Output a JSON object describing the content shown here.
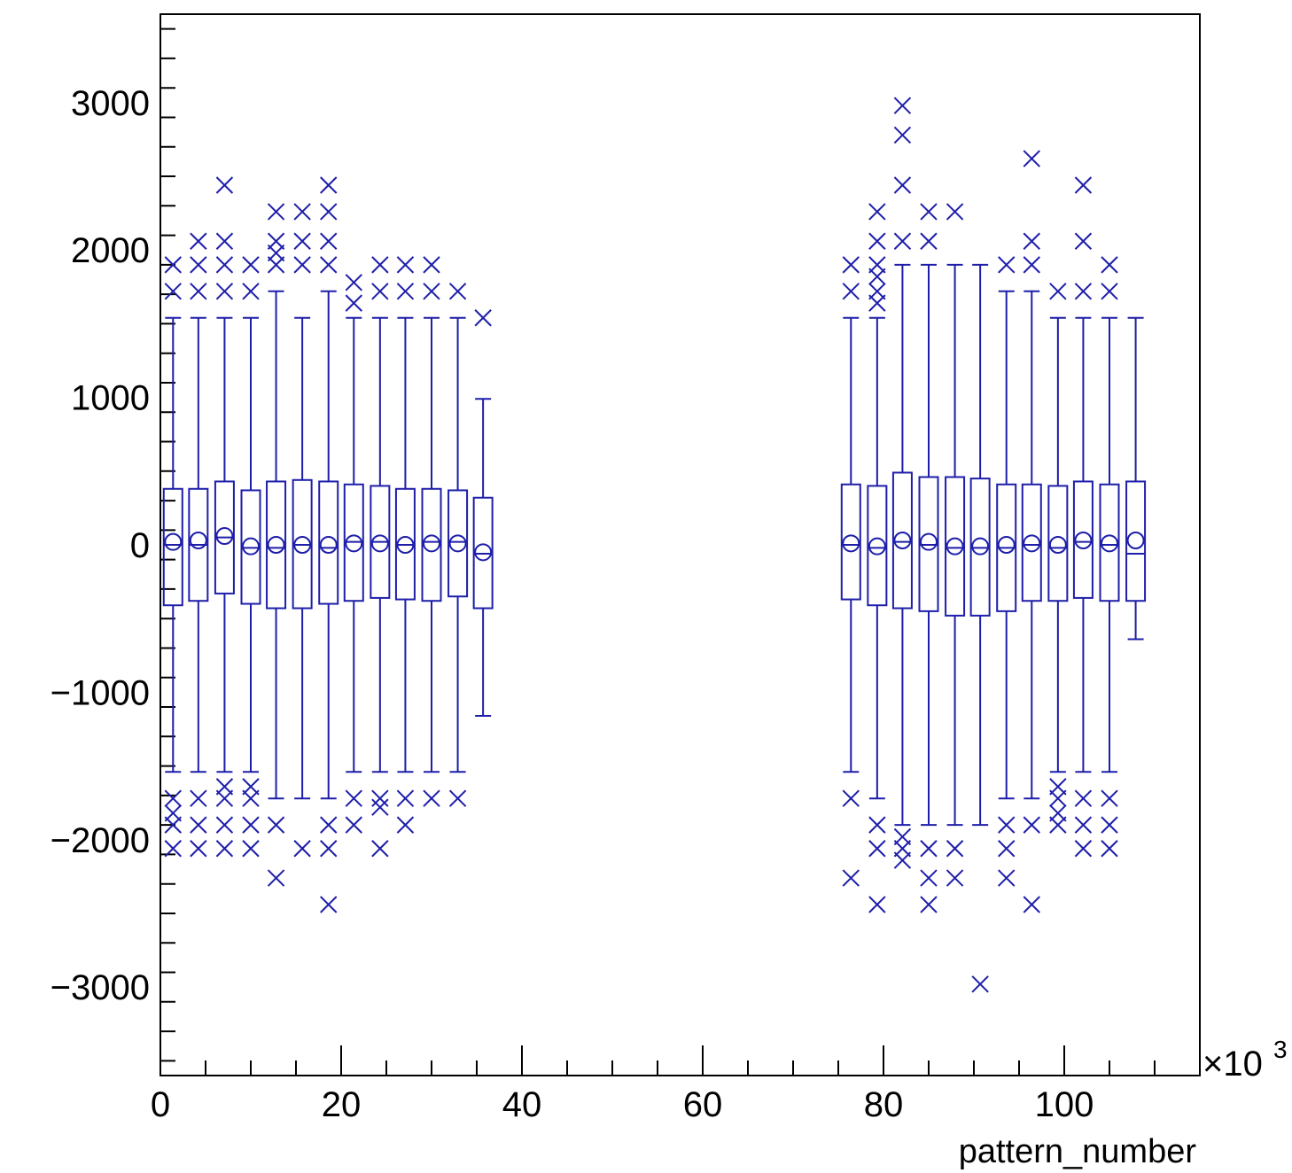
{
  "chart_data": {
    "type": "box",
    "xlabel": "pattern_number",
    "x_multiplier_label": "×10",
    "x_multiplier_exponent": "3",
    "xlim": [
      0,
      115
    ],
    "ylim": [
      -3600,
      3600
    ],
    "x_ticks": [
      0,
      20,
      40,
      60,
      80,
      100
    ],
    "x_tick_labels": [
      "0",
      "20",
      "40",
      "60",
      "80",
      "100"
    ],
    "y_ticks": [
      -3000,
      -2000,
      -1000,
      0,
      1000,
      2000,
      3000
    ],
    "y_tick_labels": [
      "−3000",
      "−2000",
      "−1000",
      "0",
      "1000",
      "2000",
      "3000"
    ],
    "color": "#1e1eaa",
    "boxes": [
      {
        "x": 1.4,
        "whisker_low": -1540,
        "q1": -410,
        "median": 0,
        "q3": 380,
        "whisker_high": 1540,
        "mean": 20,
        "outliers": [
          1720,
          1900,
          -1720,
          -1900,
          -2060,
          -1820
        ]
      },
      {
        "x": 4.2,
        "whisker_low": -1540,
        "q1": -380,
        "median": 0,
        "q3": 380,
        "whisker_high": 1540,
        "mean": 30,
        "outliers": [
          1720,
          1900,
          2060,
          -1720,
          -1900,
          -2060
        ]
      },
      {
        "x": 7.1,
        "whisker_low": -1540,
        "q1": -330,
        "median": 50,
        "q3": 430,
        "whisker_high": 1540,
        "mean": 60,
        "outliers": [
          1720,
          1900,
          2060,
          2440,
          -1640,
          -1720,
          -1900,
          -2060
        ]
      },
      {
        "x": 10.0,
        "whisker_low": -1540,
        "q1": -400,
        "median": -20,
        "q3": 370,
        "whisker_high": 1540,
        "mean": -10,
        "outliers": [
          1720,
          1900,
          -1640,
          -1720,
          -1900,
          -2060
        ]
      },
      {
        "x": 12.8,
        "whisker_low": -1720,
        "q1": -430,
        "median": -20,
        "q3": 430,
        "whisker_high": 1720,
        "mean": 0,
        "outliers": [
          1900,
          1980,
          2060,
          2260,
          -1900,
          -2260
        ]
      },
      {
        "x": 15.7,
        "whisker_low": -1720,
        "q1": -430,
        "median": 0,
        "q3": 440,
        "whisker_high": 1540,
        "mean": 0,
        "outliers": [
          1900,
          2060,
          2260,
          -2060
        ]
      },
      {
        "x": 18.6,
        "whisker_low": -1720,
        "q1": -400,
        "median": -20,
        "q3": 430,
        "whisker_high": 1720,
        "mean": 0,
        "outliers": [
          1900,
          2060,
          2260,
          2440,
          -1900,
          -2060,
          -2440
        ]
      },
      {
        "x": 21.4,
        "whisker_low": -1540,
        "q1": -380,
        "median": 20,
        "q3": 410,
        "whisker_high": 1540,
        "mean": 10,
        "outliers": [
          1640,
          1780,
          -1720,
          -1900
        ]
      },
      {
        "x": 24.3,
        "whisker_low": -1540,
        "q1": -360,
        "median": 20,
        "q3": 400,
        "whisker_high": 1540,
        "mean": 10,
        "outliers": [
          1720,
          1900,
          -1720,
          -1780,
          -2060
        ]
      },
      {
        "x": 27.1,
        "whisker_low": -1540,
        "q1": -370,
        "median": 0,
        "q3": 380,
        "whisker_high": 1540,
        "mean": 0,
        "outliers": [
          1720,
          1900,
          -1720,
          -1900
        ]
      },
      {
        "x": 30.0,
        "whisker_low": -1540,
        "q1": -380,
        "median": 20,
        "q3": 380,
        "whisker_high": 1540,
        "mean": 10,
        "outliers": [
          1720,
          1900,
          -1720
        ]
      },
      {
        "x": 32.9,
        "whisker_low": -1540,
        "q1": -350,
        "median": 20,
        "q3": 370,
        "whisker_high": 1540,
        "mean": 10,
        "outliers": [
          1720,
          -1720
        ]
      },
      {
        "x": 35.7,
        "whisker_low": -1160,
        "q1": -430,
        "median": -60,
        "q3": 320,
        "whisker_high": 990,
        "mean": -50,
        "outliers": [
          1540
        ]
      },
      {
        "x": 76.4,
        "whisker_low": -1540,
        "q1": -370,
        "median": 0,
        "q3": 410,
        "whisker_high": 1540,
        "mean": 10,
        "outliers": [
          1720,
          1900,
          -1720,
          -2260
        ]
      },
      {
        "x": 79.3,
        "whisker_low": -1720,
        "q1": -410,
        "median": -20,
        "q3": 400,
        "whisker_high": 1540,
        "mean": -10,
        "outliers": [
          1640,
          1720,
          1820,
          1900,
          2060,
          2260,
          -1900,
          -2060,
          -2440
        ]
      },
      {
        "x": 82.1,
        "whisker_low": -1900,
        "q1": -430,
        "median": 20,
        "q3": 490,
        "whisker_high": 1900,
        "mean": 30,
        "outliers": [
          2060,
          2440,
          2780,
          2980,
          -1980,
          -2060,
          -2140
        ]
      },
      {
        "x": 85.0,
        "whisker_low": -1900,
        "q1": -450,
        "median": 0,
        "q3": 460,
        "whisker_high": 1900,
        "mean": 20,
        "outliers": [
          2060,
          2260,
          -2060,
          -2260,
          -2440
        ]
      },
      {
        "x": 87.9,
        "whisker_low": -1900,
        "q1": -480,
        "median": -20,
        "q3": 460,
        "whisker_high": 1900,
        "mean": -10,
        "outliers": [
          2260,
          -2060,
          -2260
        ]
      },
      {
        "x": 90.7,
        "whisker_low": -1900,
        "q1": -480,
        "median": -20,
        "q3": 450,
        "whisker_high": 1900,
        "mean": -10,
        "outliers": [
          -2980
        ]
      },
      {
        "x": 93.6,
        "whisker_low": -1720,
        "q1": -450,
        "median": -20,
        "q3": 410,
        "whisker_high": 1720,
        "mean": 0,
        "outliers": [
          1900,
          -1900,
          -2060,
          -2260
        ]
      },
      {
        "x": 96.4,
        "whisker_low": -1720,
        "q1": -380,
        "median": 0,
        "q3": 410,
        "whisker_high": 1720,
        "mean": 10,
        "outliers": [
          1900,
          2060,
          2620,
          -1900,
          -2440
        ]
      },
      {
        "x": 99.3,
        "whisker_low": -1540,
        "q1": -380,
        "median": -20,
        "q3": 400,
        "whisker_high": 1540,
        "mean": 0,
        "outliers": [
          1720,
          -1640,
          -1720,
          -1820,
          -1900
        ]
      },
      {
        "x": 102.1,
        "whisker_low": -1540,
        "q1": -360,
        "median": 20,
        "q3": 430,
        "whisker_high": 1540,
        "mean": 30,
        "outliers": [
          1720,
          2060,
          2440,
          -1720,
          -1900,
          -2060
        ]
      },
      {
        "x": 105.0,
        "whisker_low": -1540,
        "q1": -380,
        "median": 0,
        "q3": 410,
        "whisker_high": 1540,
        "mean": 10,
        "outliers": [
          1720,
          1900,
          -1720,
          -1900,
          -2060
        ]
      },
      {
        "x": 107.9,
        "whisker_low": -640,
        "q1": -380,
        "median": -60,
        "q3": 430,
        "whisker_high": 1540,
        "mean": 30,
        "outliers": []
      }
    ]
  }
}
